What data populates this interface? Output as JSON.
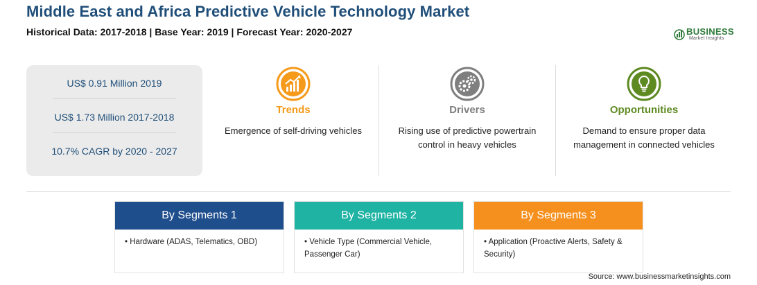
{
  "header": {
    "title": "Middle East and Africa Predictive Vehicle Technology Market",
    "subtitle": "Historical Data: 2017-2018 | Base Year: 2019 | Forecast Year: 2020-2027"
  },
  "logo": {
    "name": "BUSINESS",
    "tagline": "Market Insights"
  },
  "stats": [
    "US$ 0.91 Million 2019",
    "US$ 1.73 Million 2017-2018",
    "10.7% CAGR by 2020 - 2027"
  ],
  "highlights": [
    {
      "heading": "Trends",
      "icon": "trend-chart-icon",
      "color": "#f59a1a",
      "text": "Emergence of self-driving vehicles"
    },
    {
      "heading": "Drivers",
      "icon": "gears-icon",
      "color": "#7f7f7f",
      "text": "Rising use of predictive powertrain control in heavy vehicles"
    },
    {
      "heading": "Opportunities",
      "icon": "lightbulb-icon",
      "color": "#5e8a22",
      "text": "Demand to ensure proper data management in connected vehicles"
    }
  ],
  "segments": [
    {
      "label": "By Segments 1",
      "color": "#1f4e8c",
      "item": "• Hardware (ADAS, Telematics, OBD)"
    },
    {
      "label": "By Segments 2",
      "color": "#1fb3a3",
      "item": "• Vehicle Type (Commercial Vehicle, Passenger Car)"
    },
    {
      "label": "By Segments 3",
      "color": "#f5901e",
      "item": "• Application (Proactive Alerts, Safety & Security)"
    }
  ],
  "source": "Source: www.businessmarketinsights.com"
}
